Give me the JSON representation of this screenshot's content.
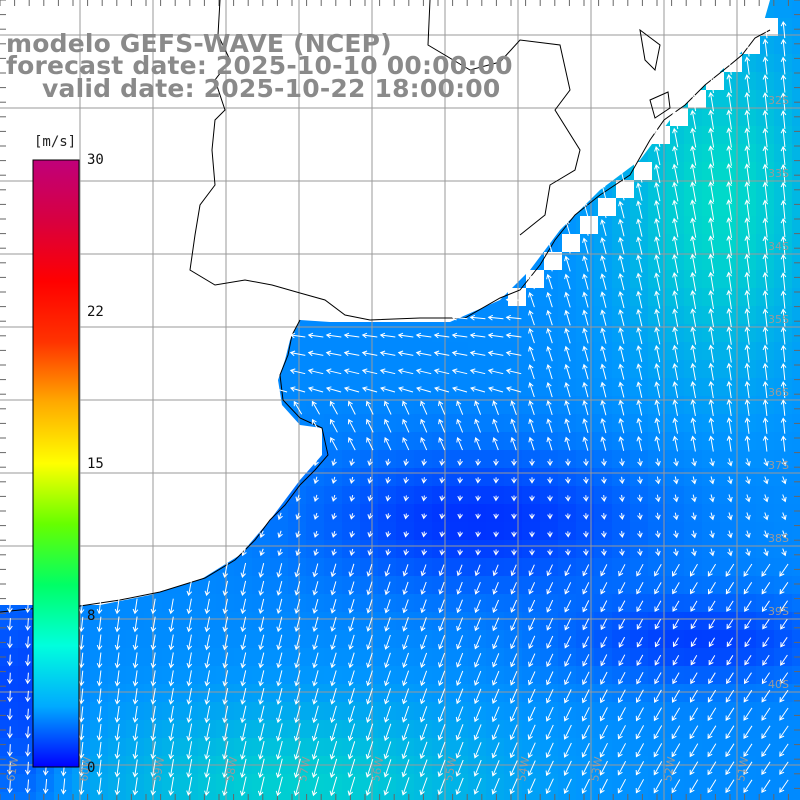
{
  "header": {
    "model_line": "modelo GEFS-WAVE (NCEP)",
    "forecast_line": "forecast date: 2025-10-10 00:00:00",
    "valid_line": "valid date: 2025-10-22 18:00:00"
  },
  "colorbar": {
    "unit": "[m/s]",
    "min": 0,
    "max": 30,
    "ticks": [
      "30",
      "22",
      "15",
      "8",
      "0"
    ],
    "stops": [
      "#0000ff",
      "#00aaff",
      "#00ffdd",
      "#00ff66",
      "#66ff00",
      "#ffff00",
      "#ffaa00",
      "#ff3300",
      "#ff0000",
      "#d80040",
      "#c0007a"
    ]
  },
  "map": {
    "land_color": "#ffffff",
    "grid_color": "#9a9a9a",
    "coast_color": "#000000",
    "arrow_color": "#ffffff",
    "lat_labels": [
      "32S",
      "33S",
      "34S",
      "35S",
      "36S",
      "37S",
      "38S",
      "39S",
      "40S"
    ],
    "lon_labels": [
      "61W",
      "60W",
      "59W",
      "58W",
      "57W",
      "56W",
      "55W",
      "54W",
      "53W",
      "52W",
      "51W"
    ]
  }
}
